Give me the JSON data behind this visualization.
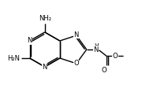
{
  "bg_color": "#ffffff",
  "line_color": "#000000",
  "lw": 1.0,
  "fs": 6.0,
  "xlim": [
    -0.5,
    11.5
  ],
  "ylim": [
    -1.5,
    5.5
  ],
  "figsize": [
    2.05,
    1.26
  ],
  "dpi": 100
}
